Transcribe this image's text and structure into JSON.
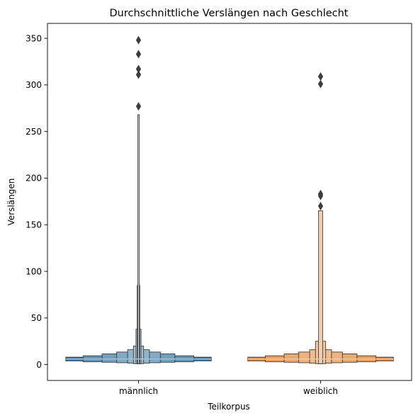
{
  "chart_data": {
    "type": "boxen",
    "title": "Durchschnittliche Verslängen nach Geschlecht",
    "xlabel": "Teilkorpus",
    "ylabel": "Verslängen",
    "categories": [
      "männlich",
      "weiblich"
    ],
    "ylim": [
      -17,
      366
    ],
    "yticks": [
      0,
      50,
      100,
      150,
      200,
      250,
      300,
      350
    ],
    "grid": false,
    "series": [
      {
        "category": "männlich",
        "color": "#3274a1",
        "median": 6,
        "levels": [
          {
            "low": 4,
            "high": 8,
            "width": 1.0
          },
          {
            "low": 3,
            "high": 9.5,
            "width": 0.76
          },
          {
            "low": 2.5,
            "high": 11.5,
            "width": 0.5
          },
          {
            "low": 2,
            "high": 13.5,
            "width": 0.3
          },
          {
            "low": 1.5,
            "high": 16,
            "width": 0.15
          },
          {
            "low": 1,
            "high": 20,
            "width": 0.07
          },
          {
            "low": 1,
            "high": 38,
            "width": 0.035
          },
          {
            "low": 1,
            "high": 85,
            "width": 0.018
          },
          {
            "low": 1,
            "high": 268,
            "width": 0.01
          }
        ],
        "outliers": [
          277,
          311,
          317,
          333,
          348
        ]
      },
      {
        "category": "weiblich",
        "color": "#e1812c",
        "median": 6,
        "levels": [
          {
            "low": 4,
            "high": 8,
            "width": 1.0
          },
          {
            "low": 3,
            "high": 9.5,
            "width": 0.76
          },
          {
            "low": 2.5,
            "high": 11.5,
            "width": 0.5
          },
          {
            "low": 2,
            "high": 13.5,
            "width": 0.3
          },
          {
            "low": 1.5,
            "high": 16,
            "width": 0.15
          },
          {
            "low": 1,
            "high": 25,
            "width": 0.07
          },
          {
            "low": 1,
            "high": 165,
            "width": 0.028
          }
        ],
        "outliers": [
          170,
          181,
          183,
          301,
          309
        ]
      }
    ]
  }
}
